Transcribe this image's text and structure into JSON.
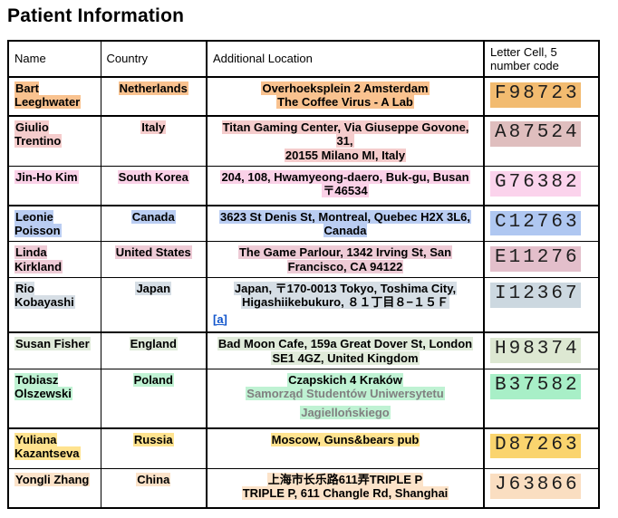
{
  "page": {
    "title": "Patient Information"
  },
  "table": {
    "headers": [
      "Name",
      "Country",
      "Additional Location",
      "Letter Cell, 5 number code"
    ],
    "link_color": "#1155CC",
    "rows": [
      {
        "name": "Bart Leeghwater",
        "country": "Netherlands",
        "address_lines": [
          "Overhoeksplein 2 Amsterdam",
          "The Coffee Virus - A Lab"
        ],
        "code": "F98723",
        "colors": {
          "highlight": "#F9C28F",
          "code_highlight": "#F2BB70"
        }
      },
      {
        "name": "Giulio Trentino",
        "country": "Italy",
        "address_lines": [
          "Titan Gaming Center, Via Giuseppe Govone, 31,",
          "20155 Milano MI, Italy"
        ],
        "code": "A87524",
        "colors": {
          "highlight": "#F5CCCC",
          "code_highlight": "#DFBEBE"
        }
      },
      {
        "name": "Jin-Ho Kim",
        "country": "South Korea",
        "address_lines": [
          "204, 108, Hwamyeong-daero, Buk-gu, Busan",
          "〒46534"
        ],
        "code": "G76382",
        "colors": {
          "highlight": "#FAD1E7",
          "code_highlight": "#FBD3EC"
        }
      },
      {
        "name": "Leonie Poisson",
        "country": "Canada",
        "address_lines": [
          "3623 St Denis St, Montreal, Quebec H2X 3L6,",
          "Canada"
        ],
        "code": "C12763",
        "colors": {
          "highlight": "#BACDF2",
          "code_highlight": "#AFC7F1"
        }
      },
      {
        "name": "Linda Kirkland",
        "country": "United States",
        "address_lines": [
          "The Game Parlour, 1342 Irving St, San",
          "Francisco, CA 94122"
        ],
        "code": "E11276",
        "colors": {
          "highlight": "#EECBD6",
          "code_highlight": "#E3BFCB"
        }
      },
      {
        "name": "Rio Kobayashi",
        "country": "Japan",
        "address_lines": [
          "Japan, 〒170-0013 Tokyo, Toshima City,",
          "Higashiikebukuro, ８１丁目８−１５Ｆ"
        ],
        "footnote_link": "[a]",
        "code": "I12367",
        "colors": {
          "highlight": "#D6DEE5",
          "code_highlight": "#CCD8E0"
        }
      },
      {
        "name": "Susan Fisher",
        "country": "England",
        "address_lines": [
          "Bad Moon Cafe, 159a Great Dover St, London",
          "SE1 4GZ, United Kingdom"
        ],
        "code": "H98374",
        "colors": {
          "highlight": "#E0EBDA",
          "code_highlight": "#DDE8D2"
        }
      },
      {
        "name": "Tobiasz Olszewski",
        "country": "Poland",
        "address_lines": [
          "Czapskich 4 Kraków"
        ],
        "secondary_lines": [
          "Samorząd Studentów Uniwersytetu",
          "Jagiellońskiego"
        ],
        "code": "B37582",
        "colors": {
          "highlight": "#BFF2D3",
          "code_highlight": "#A8EFC7",
          "secondary_text": "#808080"
        }
      },
      {
        "name": "Yuliana Kazantseva",
        "country": "Russia",
        "address_lines": [
          "Moscow, Guns&bears pub"
        ],
        "code": "D87263",
        "colors": {
          "highlight": "#FFE38F",
          "code_highlight": "#FAD46E"
        }
      },
      {
        "name": "Yongli Zhang",
        "country": "China",
        "address_lines": [
          "上海市长乐路611弄TRIPLE P",
          "TRIPLE P, 611 Changle Rd, Shanghai"
        ],
        "code": "J63866",
        "colors": {
          "highlight": "#FCE3C9",
          "code_highlight": "#FADEC1"
        }
      }
    ]
  }
}
